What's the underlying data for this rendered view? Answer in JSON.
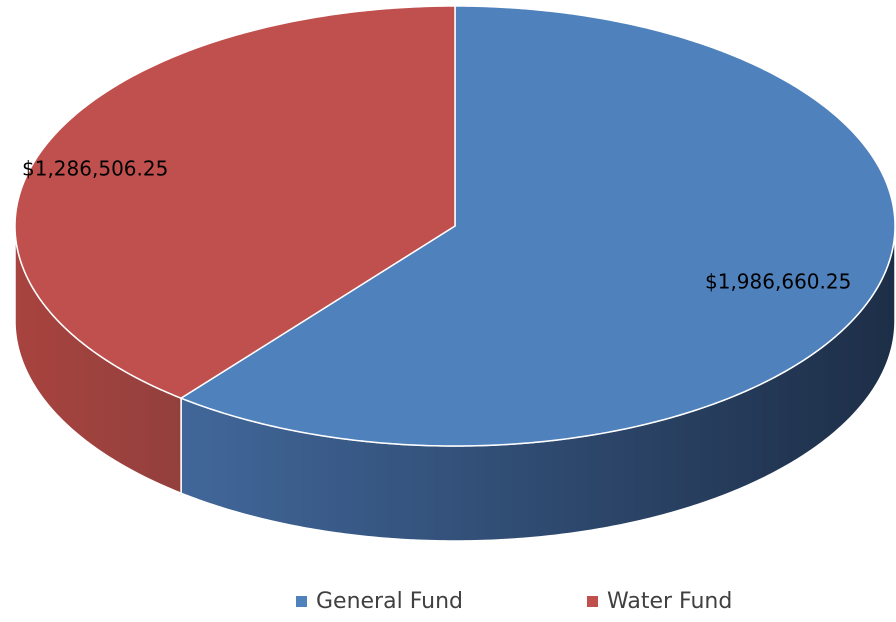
{
  "chart_data": {
    "type": "pie3d",
    "categories": [
      "General Fund",
      "Water Fund"
    ],
    "values": [
      1986660.25,
      1286506.25
    ],
    "value_labels": [
      "$1,986,660.25",
      "$1,286,506.25"
    ],
    "colors": [
      "#4f81bd",
      "#c0504d"
    ],
    "legend": "bottom"
  }
}
